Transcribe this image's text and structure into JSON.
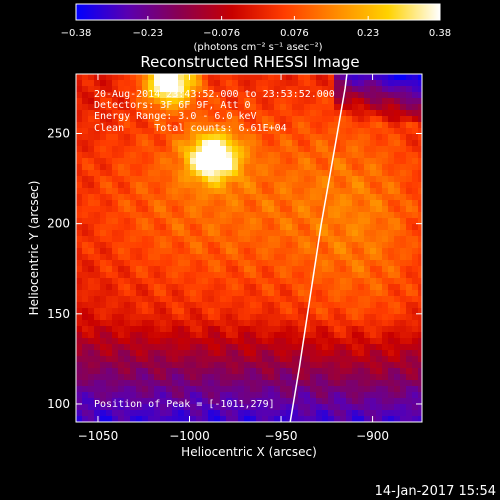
{
  "colors": {
    "background": "#000000",
    "foreground": "#ffffff",
    "colormap": [
      "#0000ff",
      "#5a00b0",
      "#8a0050",
      "#c80000",
      "#ff3c00",
      "#ff8a00",
      "#ffd200",
      "#ffffff"
    ]
  },
  "footer": {
    "date": "14-Jan-2017 15:54"
  },
  "chart_data": {
    "type": "heatmap",
    "title": "Reconstructed RHESSI Image",
    "xlabel": "Heliocentric X (arcsec)",
    "ylabel": "Heliocentric Y (arcsec)",
    "xlim": [
      -1062,
      -873
    ],
    "ylim": [
      90,
      283
    ],
    "xticks": [
      -1050,
      -1000,
      -950,
      -900
    ],
    "xtick_labels": [
      "−1050",
      "−1000",
      "−950",
      "−900"
    ],
    "yticks": [
      100,
      150,
      200,
      250
    ],
    "ytick_labels": [
      "100",
      "150",
      "200",
      "250"
    ],
    "colorbar": {
      "min": -0.38,
      "max": 0.38,
      "ticks": [
        -0.38,
        -0.23,
        -0.076,
        0.076,
        0.23,
        0.38
      ],
      "tick_labels": [
        "−0.38",
        "−0.23",
        "−0.076",
        "0.076",
        "0.23",
        "0.38"
      ],
      "label": "(photons cm⁻² s⁻¹ asec⁻²)"
    },
    "annotations": [
      "20-Aug-2014 23:43:52.000 to 23:53:52.000",
      "Detectors: 3F 6F 9F, Att 0",
      "Energy Range: 3.0 - 6.0 keV",
      "Clean     Total counts: 6.61E+04"
    ],
    "peak_label": "Position of Peak = [-1011,279]",
    "peaks": [
      {
        "x": -1011,
        "y": 279,
        "value": 0.38
      },
      {
        "x": -987,
        "y": 237,
        "value": 0.34
      }
    ],
    "limb": [
      [
        -945,
        90
      ],
      [
        -940,
        120
      ],
      [
        -934,
        160
      ],
      [
        -928,
        200
      ],
      [
        -921,
        240
      ],
      [
        -915,
        275
      ],
      [
        -914,
        283
      ]
    ]
  }
}
